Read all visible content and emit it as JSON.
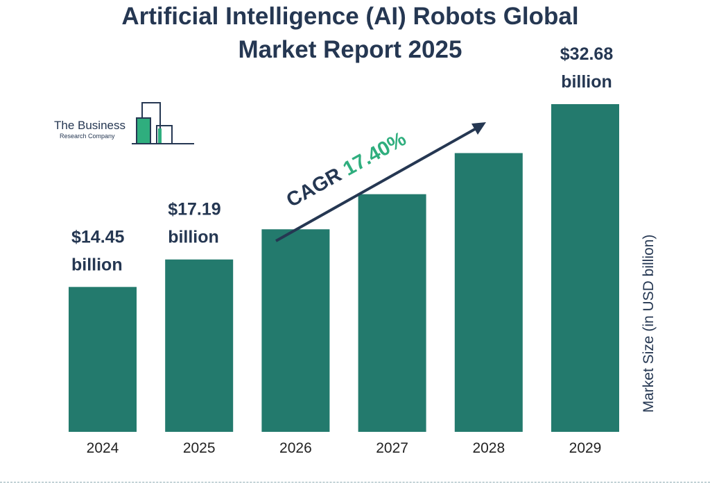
{
  "title_line1": "Artificial Intelligence (AI) Robots Global",
  "title_line2": "Market Report 2025",
  "logo": {
    "line1": "The Business",
    "line2": "Research Company"
  },
  "colors": {
    "bar": "#237a6d",
    "text": "#253752",
    "cagr_value": "#2fae7e"
  },
  "cagr": {
    "label": "CAGR",
    "value": "17.40%"
  },
  "chart_data": {
    "type": "bar",
    "title": "Artificial Intelligence (AI) Robots Global Market Report 2025",
    "categories": [
      "2024",
      "2025",
      "2026",
      "2027",
      "2028",
      "2029"
    ],
    "values": [
      14.45,
      17.19,
      20.2,
      23.7,
      27.8,
      32.68
    ],
    "value_labels": [
      {
        "index": 0,
        "line1": "$14.45",
        "line2": "billion"
      },
      {
        "index": 1,
        "line1": "$17.19",
        "line2": "billion"
      },
      {
        "index": 5,
        "line1": "$32.68",
        "line2": "billion"
      }
    ],
    "ylabel": "Market Size (in USD billion)",
    "xlabel": "",
    "ylim": [
      0,
      32.68
    ],
    "grid": false,
    "legend": "none"
  }
}
